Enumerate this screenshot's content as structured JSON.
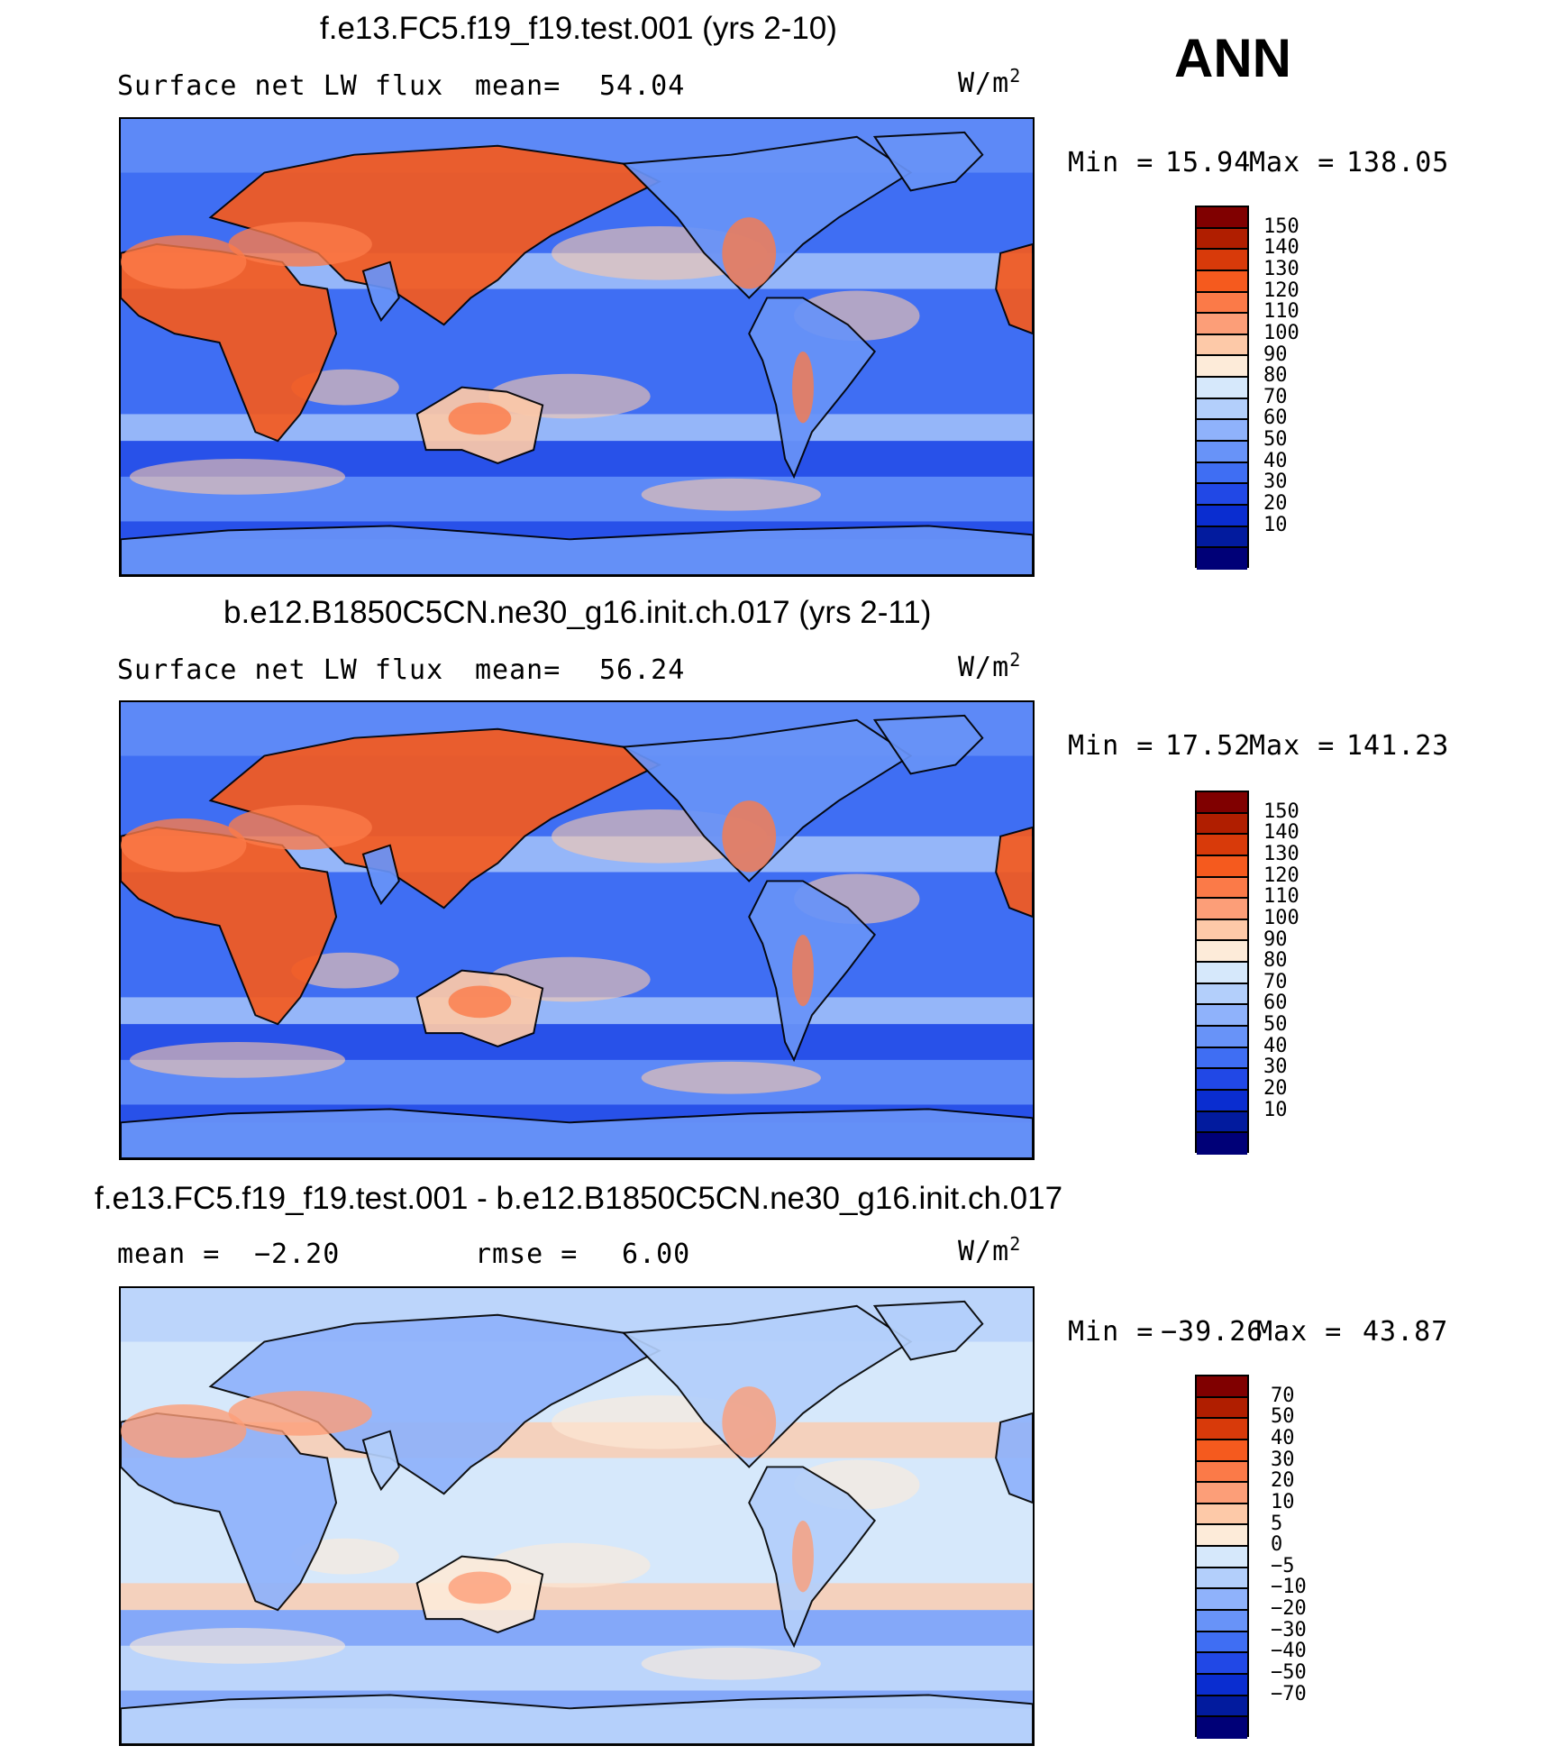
{
  "season": "ANN",
  "units_base": "W/m",
  "units_exp": "2",
  "panels": [
    {
      "case_title": "f.e13.FC5.f19_f19.test.001 (yrs 2-10)",
      "left_text": "Surface net LW flux",
      "stat_label": "mean=",
      "stat_value": "54.04",
      "min_label": "Min =",
      "min_value": "15.94",
      "max_label": "Max =",
      "max_value": "138.05",
      "contour_levels": [
        "150",
        "140",
        "130",
        "120",
        "110",
        "100",
        "90",
        "80",
        "70",
        "60",
        "50",
        "40",
        "30",
        "20",
        "10"
      ],
      "colors": [
        "#800000",
        "#b01e00",
        "#d83a0a",
        "#f55a1e",
        "#fb7a48",
        "#fc9e78",
        "#fdc9a8",
        "#fdebd9",
        "#d6e8fb",
        "#b3cffb",
        "#8fb2fb",
        "#6893f8",
        "#3f6ef3",
        "#2148e6",
        "#0a2dd0",
        "#021b9e",
        "#000077"
      ],
      "map_fill": [
        "#3f6ef3",
        "#6893f8",
        "#b3cffb",
        "#fb7a48",
        "#f55a1e",
        "#fdc9a8",
        "#2148e6"
      ]
    },
    {
      "case_title": "b.e12.B1850C5CN.ne30_g16.init.ch.017 (yrs 2-11)",
      "left_text": "Surface net LW flux",
      "stat_label": "mean=",
      "stat_value": "56.24",
      "min_label": "Min =",
      "min_value": "17.52",
      "max_label": "Max =",
      "max_value": "141.23",
      "contour_levels": [
        "150",
        "140",
        "130",
        "120",
        "110",
        "100",
        "90",
        "80",
        "70",
        "60",
        "50",
        "40",
        "30",
        "20",
        "10"
      ],
      "colors": [
        "#800000",
        "#b01e00",
        "#d83a0a",
        "#f55a1e",
        "#fb7a48",
        "#fc9e78",
        "#fdc9a8",
        "#fdebd9",
        "#d6e8fb",
        "#b3cffb",
        "#8fb2fb",
        "#6893f8",
        "#3f6ef3",
        "#2148e6",
        "#0a2dd0",
        "#021b9e",
        "#000077"
      ],
      "map_fill": [
        "#3f6ef3",
        "#6893f8",
        "#b3cffb",
        "#fb7a48",
        "#f55a1e",
        "#fdc9a8",
        "#2148e6"
      ]
    },
    {
      "case_title": "f.e13.FC5.f19_f19.test.001 - b.e12.B1850C5CN.ne30_g16.init.ch.017",
      "left_label": "mean =",
      "left_value": "−2.20",
      "stat_label": "rmse =",
      "stat_value": "6.00",
      "min_label": "Min =",
      "min_value": "−39.26",
      "max_label": "Max =",
      "max_value": "43.87",
      "contour_levels": [
        "70",
        "50",
        "40",
        "30",
        "20",
        "10",
        "5",
        "0",
        "−5",
        "−10",
        "−20",
        "−30",
        "−40",
        "−50",
        "−70"
      ],
      "colors": [
        "#800000",
        "#b01e00",
        "#d83a0a",
        "#f55a1e",
        "#fb7a48",
        "#fc9e78",
        "#fdc9a8",
        "#fdebd9",
        "#d6e8fb",
        "#b3cffb",
        "#8fb2fb",
        "#6893f8",
        "#3f6ef3",
        "#2148e6",
        "#0a2dd0",
        "#021b9e",
        "#000077"
      ],
      "map_fill": [
        "#d6e8fb",
        "#b3cffb",
        "#fdc9a8",
        "#fc9e78",
        "#8fb2fb",
        "#fdebd9",
        "#6893f8"
      ]
    }
  ]
}
